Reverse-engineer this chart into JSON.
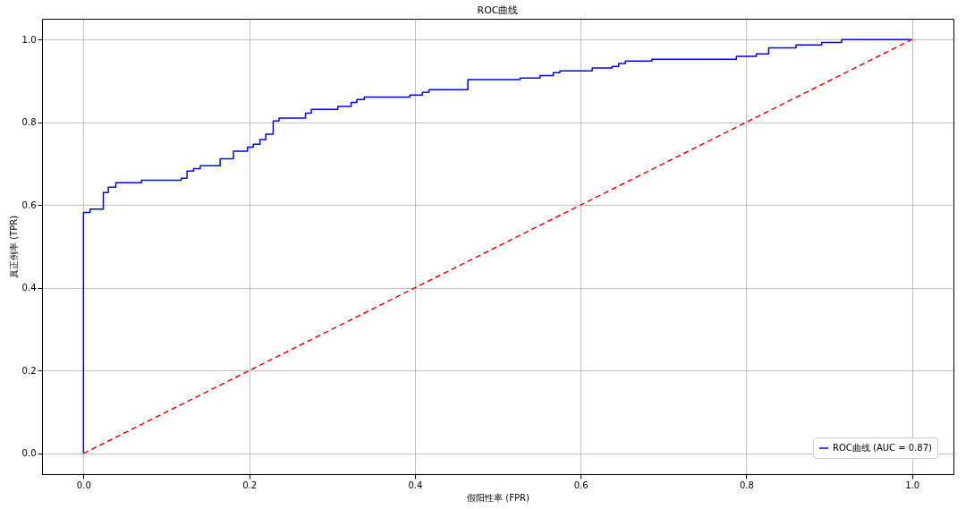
{
  "chart_data": {
    "type": "line",
    "title": "ROC曲线",
    "xlabel": "假阳性率 (FPR)",
    "ylabel": "真正例率 (TPR)",
    "xlim": [
      -0.05,
      1.05
    ],
    "ylim": [
      -0.05,
      1.05
    ],
    "xticks": [
      {
        "value": 0,
        "label": "0.0"
      },
      {
        "value": 0.2,
        "label": "0.2"
      },
      {
        "value": 0.4,
        "label": "0.4"
      },
      {
        "value": 0.6,
        "label": "0.6"
      },
      {
        "value": 0.8,
        "label": "0.8"
      },
      {
        "value": 1,
        "label": "1.0"
      }
    ],
    "yticks": [
      {
        "value": 0,
        "label": "0.0"
      },
      {
        "value": 0.2,
        "label": "0.2"
      },
      {
        "value": 0.4,
        "label": "0.4"
      },
      {
        "value": 0.6,
        "label": "0.6"
      },
      {
        "value": 0.8,
        "label": "0.8"
      },
      {
        "value": 1,
        "label": "1.0"
      }
    ],
    "grid": true,
    "legend": "bottom right",
    "series": [
      {
        "name": "ROC曲线 (AUC = 0.87)",
        "type": "step",
        "color": "#0000ff",
        "line_style": "solid",
        "x": [
          0,
          0,
          0.008,
          0.024,
          0.03,
          0.039,
          0.07,
          0.118,
          0.125,
          0.133,
          0.141,
          0.165,
          0.181,
          0.198,
          0.205,
          0.213,
          0.22,
          0.229,
          0.236,
          0.268,
          0.275,
          0.307,
          0.323,
          0.33,
          0.339,
          0.394,
          0.409,
          0.417,
          0.464,
          0.527,
          0.551,
          0.567,
          0.575,
          0.614,
          0.638,
          0.646,
          0.654,
          0.686,
          0.788,
          0.812,
          0.827,
          0.86,
          0.891,
          0.915,
          1
        ],
        "values": [
          0,
          0.582,
          0.59,
          0.63,
          0.643,
          0.654,
          0.66,
          0.665,
          0.682,
          0.688,
          0.695,
          0.712,
          0.73,
          0.74,
          0.747,
          0.758,
          0.771,
          0.803,
          0.81,
          0.822,
          0.831,
          0.838,
          0.848,
          0.855,
          0.861,
          0.866,
          0.872,
          0.879,
          0.903,
          0.907,
          0.913,
          0.92,
          0.924,
          0.931,
          0.935,
          0.942,
          0.948,
          0.952,
          0.959,
          0.965,
          0.98,
          0.987,
          0.993,
          1,
          1
        ]
      },
      {
        "type": "line",
        "color": "#ff0000",
        "line_style": "dashed",
        "x": [
          0,
          1
        ],
        "values": [
          0,
          1
        ]
      }
    ]
  }
}
